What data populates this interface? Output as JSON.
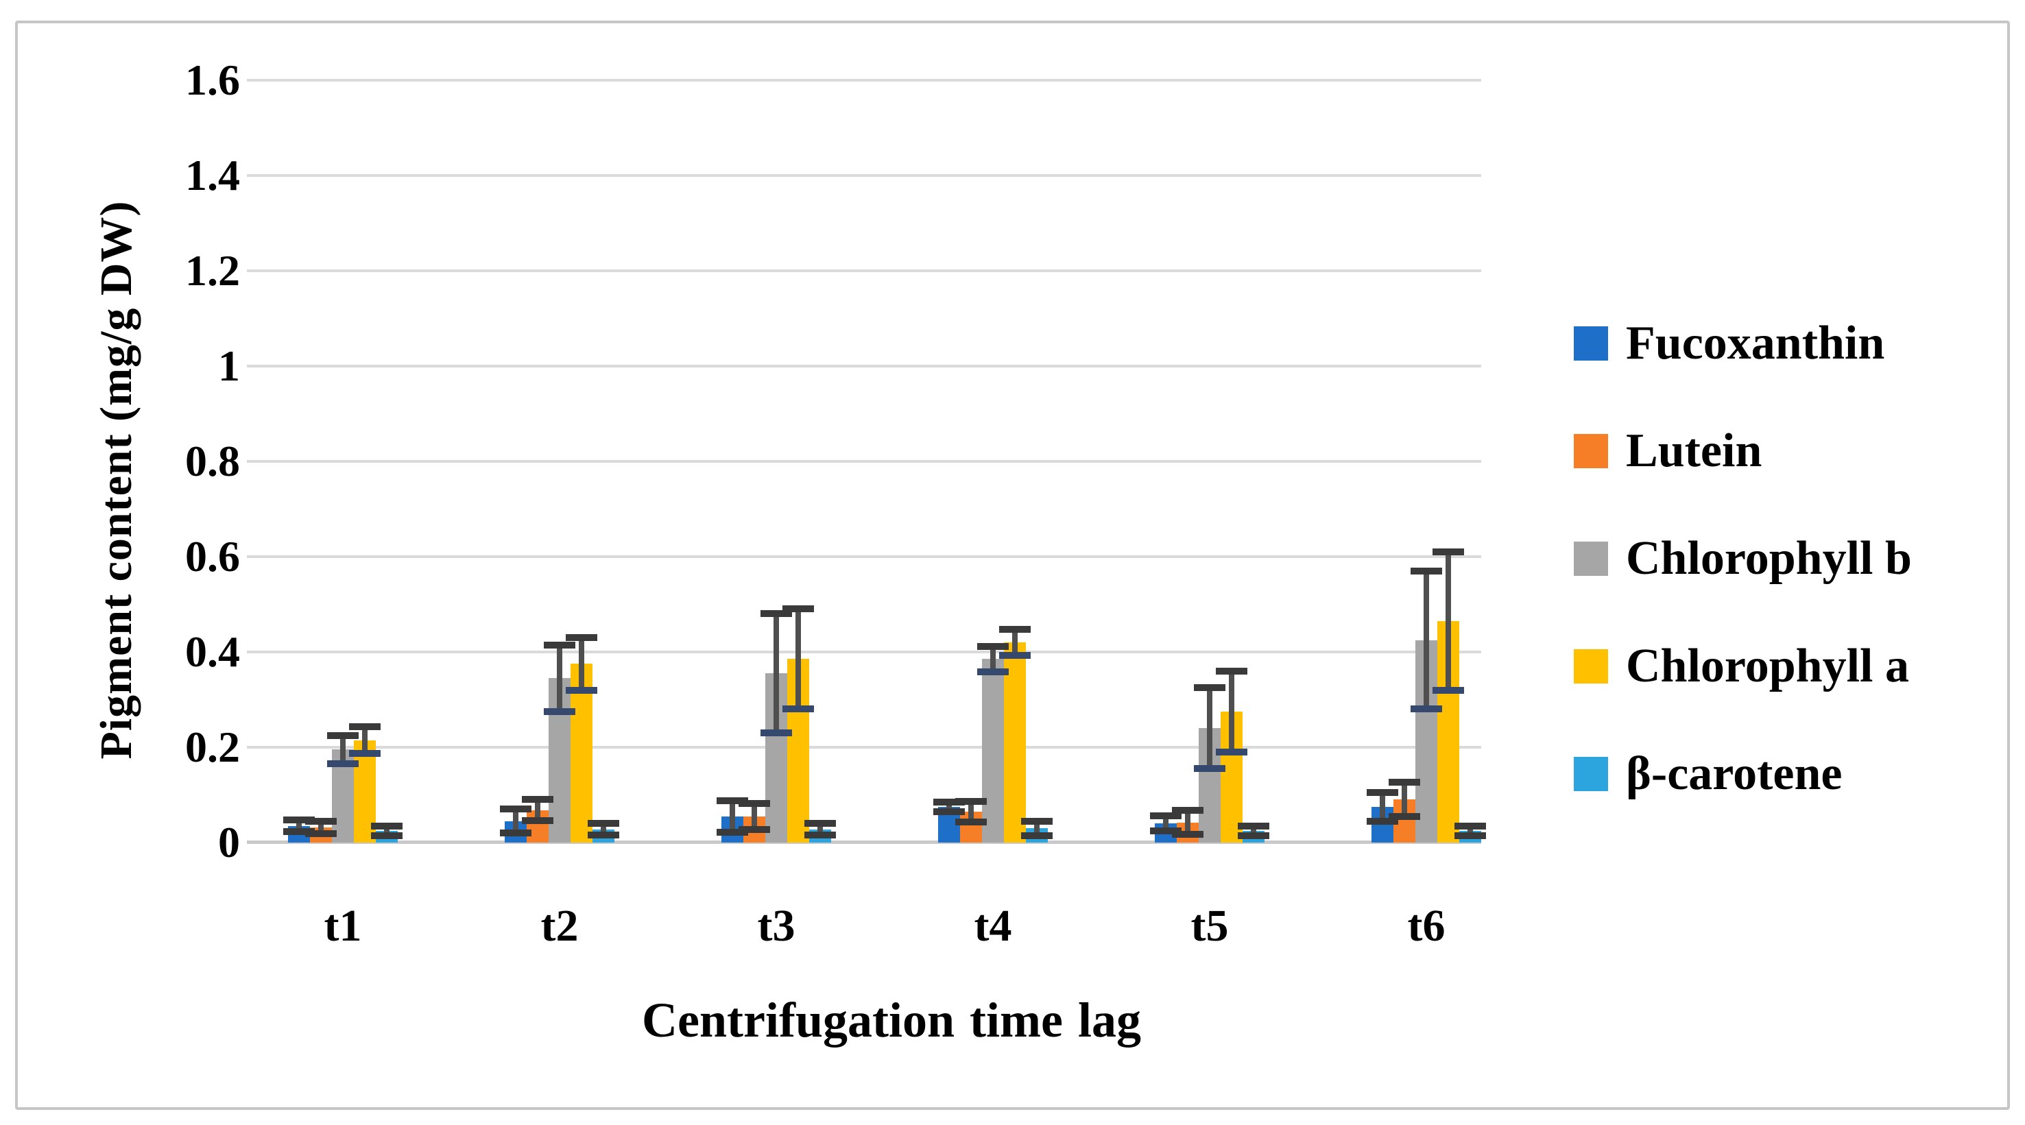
{
  "figure": {
    "background": "#FFFFFF",
    "border_color": "#C6C6C6"
  },
  "chart_data": {
    "type": "bar",
    "title": "",
    "xlabel": "Centrifugation time lag",
    "ylabel": "Pigment content (mg/g DW)",
    "categories": [
      "t1",
      "t2",
      "t3",
      "t4",
      "t5",
      "t6"
    ],
    "ylim": [
      0,
      1.6
    ],
    "ytick_step": 0.2,
    "ytick_labels": [
      "0",
      "0.2",
      "0.4",
      "0.6",
      "0.8",
      "1",
      "1.2",
      "1.4",
      "1.6"
    ],
    "grid": true,
    "legend_position": "right",
    "series": [
      {
        "name": "Fucoxanthin",
        "slug": "fucoxanthin",
        "color": "#1D6FC8",
        "values": [
          0.035,
          0.045,
          0.055,
          0.075,
          0.04,
          0.075
        ],
        "errors": [
          0.012,
          0.025,
          0.033,
          0.01,
          0.016,
          0.03
        ]
      },
      {
        "name": "Lutein",
        "slug": "lutein",
        "color": "#F57E27",
        "values": [
          0.032,
          0.068,
          0.055,
          0.065,
          0.042,
          0.09
        ],
        "errors": [
          0.013,
          0.022,
          0.027,
          0.022,
          0.025,
          0.036
        ]
      },
      {
        "name": "Chlorophyll b",
        "slug": "chlorophyll-b",
        "color": "#A6A6A6",
        "values": [
          0.195,
          0.345,
          0.355,
          0.385,
          0.24,
          0.425
        ],
        "errors": [
          0.03,
          0.07,
          0.125,
          0.026,
          0.085,
          0.145
        ]
      },
      {
        "name": "Chlorophyll a",
        "slug": "chlorophyll-a",
        "color": "#FFC000",
        "values": [
          0.215,
          0.375,
          0.385,
          0.42,
          0.275,
          0.465
        ],
        "errors": [
          0.028,
          0.055,
          0.105,
          0.027,
          0.085,
          0.145
        ]
      },
      {
        "name": "β-carotene",
        "slug": "beta-carotene",
        "color": "#2CA4DE",
        "values": [
          0.025,
          0.028,
          0.028,
          0.03,
          0.025,
          0.025
        ],
        "errors": [
          0.01,
          0.012,
          0.012,
          0.015,
          0.01,
          0.01
        ]
      }
    ],
    "error_bar": {
      "line_color": "#4F4F4F",
      "cap_color": "#3A3A3A",
      "lower_cap_colors": [
        "#3A3A3A",
        "#3A3A3A",
        "#35496E",
        "#35496E",
        "#3A3A3A"
      ]
    },
    "gridline_color": "#DADADA",
    "axis_line_color": "#C9C9C9"
  }
}
